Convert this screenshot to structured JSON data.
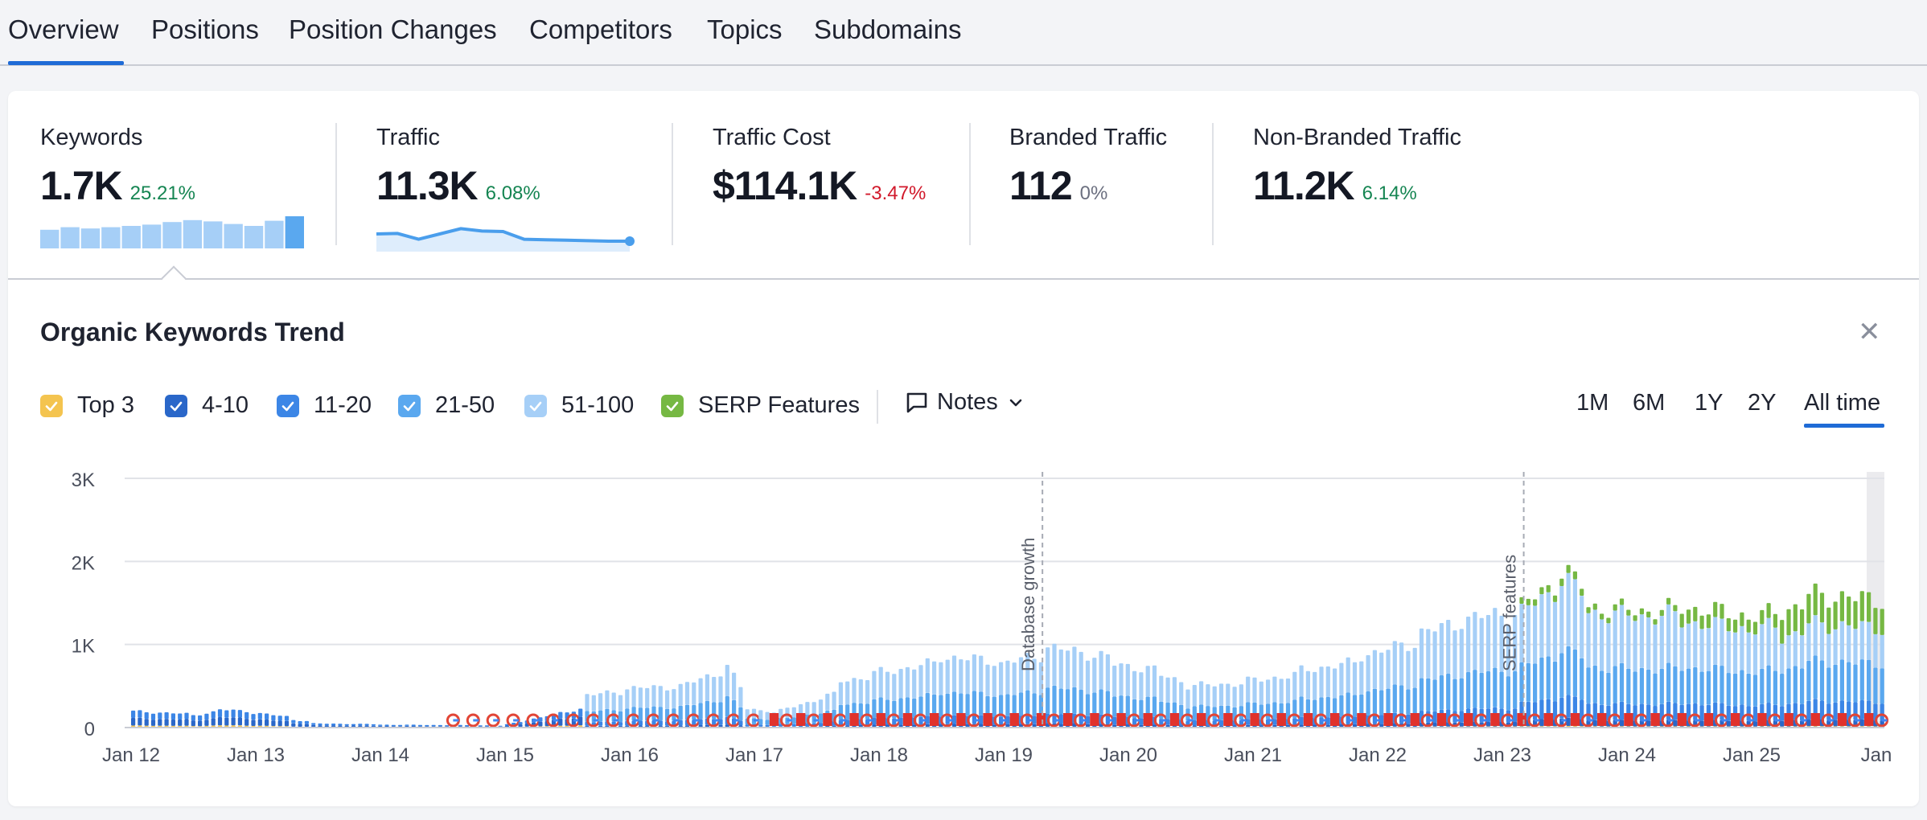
{
  "tabs": [
    {
      "label": "Overview"
    },
    {
      "label": "Positions"
    },
    {
      "label": "Position Changes"
    },
    {
      "label": "Competitors"
    },
    {
      "label": "Topics"
    },
    {
      "label": "Subdomains"
    }
  ],
  "metrics": [
    {
      "label": "Keywords",
      "value": "1.7K",
      "delta": "25.21%",
      "trend": "pos"
    },
    {
      "label": "Traffic",
      "value": "11.3K",
      "delta": "6.08%",
      "trend": "pos"
    },
    {
      "label": "Traffic Cost",
      "value": "$114.1K",
      "delta": "-3.47%",
      "trend": "neg"
    },
    {
      "label": "Branded Traffic",
      "value": "112",
      "delta": "0%",
      "trend": "neutral"
    },
    {
      "label": "Non-Branded Traffic",
      "value": "11.2K",
      "delta": "6.14%",
      "trend": "pos"
    }
  ],
  "sparklines": {
    "keywords": [
      0.58,
      0.66,
      0.62,
      0.66,
      0.7,
      0.74,
      0.82,
      0.88,
      0.84,
      0.76,
      0.7,
      0.86,
      1.0
    ],
    "traffic": [
      0.6,
      0.62,
      0.38,
      0.6,
      0.82,
      0.72,
      0.7,
      0.38,
      0.36,
      0.34,
      0.32,
      0.3,
      0.3
    ]
  },
  "section": {
    "title": "Organic Keywords Trend",
    "close_icon": "close-icon"
  },
  "legend": [
    {
      "label": "Top 3",
      "color": "#f4c44f"
    },
    {
      "label": "4-10",
      "color": "#2a67c9"
    },
    {
      "label": "11-20",
      "color": "#3c86e6"
    },
    {
      "label": "21-50",
      "color": "#5aa8ef"
    },
    {
      "label": "51-100",
      "color": "#a6cff7"
    },
    {
      "label": "SERP Features",
      "color": "#76b843"
    }
  ],
  "notes": {
    "label": "Notes",
    "icon": "comment-icon",
    "chevron": "chevron-down-icon"
  },
  "ranges": [
    {
      "label": "1M"
    },
    {
      "label": "6M"
    },
    {
      "label": "1Y"
    },
    {
      "label": "2Y"
    },
    {
      "label": "All time",
      "active": true
    }
  ],
  "chart_data": {
    "type": "bar",
    "title": "",
    "xlabel": "",
    "ylabel": "",
    "ylim": [
      0,
      3000
    ],
    "y_ticks": [
      "0",
      "1K",
      "2K",
      "3K"
    ],
    "x_ticks": [
      "Jan 12",
      "Jan 13",
      "Jan 14",
      "Jan 15",
      "Jan 16",
      "Jan 17",
      "Jan 18",
      "Jan 19",
      "Jan 20",
      "Jan 21",
      "Jan 22",
      "Jan 23",
      "Jan 24",
      "Jan 25",
      "Jan "
    ],
    "grid": true,
    "stacked": true,
    "x_range": [
      2012.0,
      2026.15
    ],
    "annotations": [
      {
        "text": "Database growth",
        "x": 2019.38
      },
      {
        "text": "SERP features",
        "x": 2023.25
      }
    ],
    "series_colors": {
      "Top 3": "#f4c44f",
      "4-10": "#2a67c9",
      "11-20": "#3c86e6",
      "21-50": "#5aa8ef",
      "51-100": "#a6cff7",
      "SERP Features": "#76b843"
    },
    "segments": [
      {
        "from": 2012.0,
        "to": 2012.5,
        "total": 200
      },
      {
        "from": 2012.5,
        "to": 2012.7,
        "total": 140
      },
      {
        "from": 2012.7,
        "to": 2013.0,
        "total": 220
      },
      {
        "from": 2013.0,
        "to": 2013.3,
        "total": 180
      },
      {
        "from": 2013.3,
        "to": 2013.5,
        "total": 100
      },
      {
        "from": 2013.5,
        "to": 2014.0,
        "total": 50
      },
      {
        "from": 2014.0,
        "to": 2015.0,
        "total": 35
      },
      {
        "from": 2015.0,
        "to": 2015.7,
        "total": 20
      },
      {
        "from": 2015.7,
        "to": 2016.0,
        "total": 390
      },
      {
        "from": 2016.0,
        "to": 2016.5,
        "total": 470
      },
      {
        "from": 2016.5,
        "to": 2016.8,
        "total": 520
      },
      {
        "from": 2016.8,
        "to": 2016.95,
        "total": 800
      },
      {
        "from": 2016.95,
        "to": 2017.2,
        "total": 230
      },
      {
        "from": 2017.2,
        "to": 2017.7,
        "total": 180
      },
      {
        "from": 2017.7,
        "to": 2018.0,
        "total": 560
      },
      {
        "from": 2018.0,
        "to": 2018.5,
        "total": 650
      },
      {
        "from": 2018.5,
        "to": 2019.0,
        "total": 860
      },
      {
        "from": 2019.0,
        "to": 2019.4,
        "total": 760
      },
      {
        "from": 2019.4,
        "to": 2019.9,
        "total": 970
      },
      {
        "from": 2019.9,
        "to": 2020.3,
        "total": 770
      },
      {
        "from": 2020.3,
        "to": 2020.5,
        "total": 640
      },
      {
        "from": 2020.5,
        "to": 2021.0,
        "total": 500
      },
      {
        "from": 2021.0,
        "to": 2021.4,
        "total": 560
      },
      {
        "from": 2021.4,
        "to": 2021.9,
        "total": 680
      },
      {
        "from": 2021.9,
        "to": 2022.4,
        "total": 860
      },
      {
        "from": 2022.4,
        "to": 2022.7,
        "total": 1150
      },
      {
        "from": 2022.7,
        "to": 2023.2,
        "total": 1300
      },
      {
        "from": 2023.2,
        "to": 2023.5,
        "total": 1450
      },
      {
        "from": 2023.5,
        "to": 2023.75,
        "total": 1950
      },
      {
        "from": 2023.75,
        "to": 2024.1,
        "total": 1450
      },
      {
        "from": 2024.1,
        "to": 2024.5,
        "total": 1400
      },
      {
        "from": 2024.5,
        "to": 2025.0,
        "total": 1450
      },
      {
        "from": 2025.0,
        "to": 2025.5,
        "total": 1300
      },
      {
        "from": 2025.5,
        "to": 2025.9,
        "total": 1600
      },
      {
        "from": 2025.9,
        "to": 2026.15,
        "total": 1550
      }
    ]
  }
}
